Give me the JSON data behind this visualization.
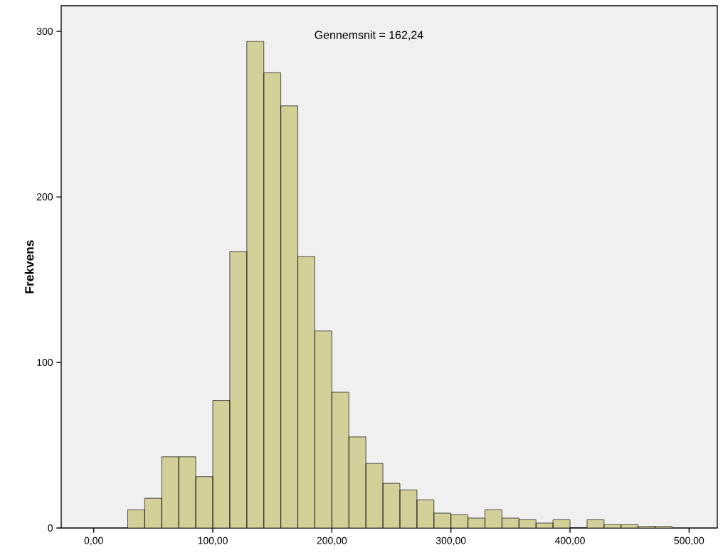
{
  "chart_data": {
    "type": "histogram",
    "ylabel": "Frekvens",
    "annotations": [
      "Gennemsnit = 162,24"
    ],
    "bins": [
      28.57,
      42.86,
      57.14,
      71.43,
      85.71,
      100,
      114.29,
      128.57,
      142.86,
      157.14,
      171.43,
      185.71,
      200,
      214.29,
      228.57,
      242.86,
      257.14,
      271.43,
      285.71,
      300,
      314.29,
      328.57,
      342.86,
      357.14,
      371.43,
      385.71,
      400,
      414.29,
      428.57,
      442.86,
      457.14,
      471.43,
      485.71
    ],
    "values": [
      11,
      18,
      43,
      43,
      31,
      77,
      167,
      294,
      275,
      255,
      164,
      119,
      82,
      55,
      39,
      27,
      23,
      17,
      9,
      8,
      6,
      11,
      6,
      5,
      3,
      5,
      0,
      5,
      2,
      2,
      1,
      1
    ],
    "color": "#d3cf99",
    "xlim": [
      -27.3,
      523.7
    ],
    "ylim": [
      0,
      315.5
    ],
    "xticks": [
      {
        "value": 0,
        "label": "0,00"
      },
      {
        "value": 100,
        "label": "100,00"
      },
      {
        "value": 200,
        "label": "200,00"
      },
      {
        "value": 300,
        "label": "300,00"
      },
      {
        "value": 400,
        "label": "400,00"
      },
      {
        "value": 500,
        "label": "500,00"
      }
    ],
    "yticks": [
      0,
      100,
      200,
      300
    ]
  }
}
